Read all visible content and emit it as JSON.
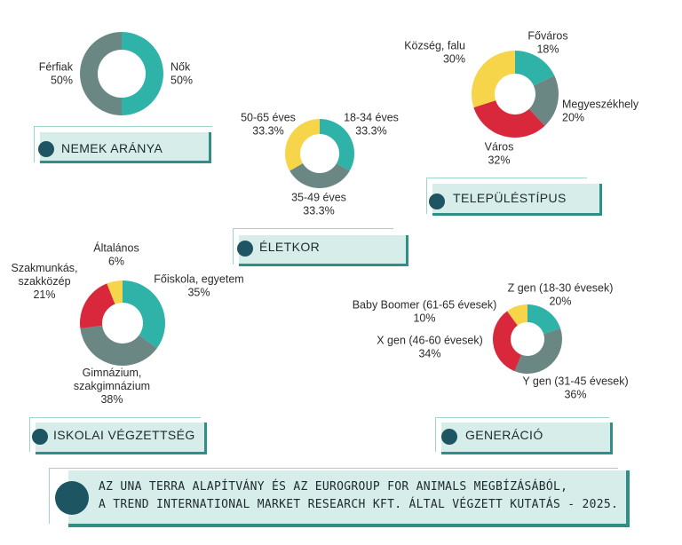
{
  "colors": {
    "teal": "#2fb3a9",
    "gray": "#6b8783",
    "red": "#d9273b",
    "yellow": "#f7d54a"
  },
  "panels": {
    "gender": "NEMEK ARÁNYA",
    "age": "ÉLETKOR",
    "settlement": "TELEPÜLÉSTÍPUS",
    "education": "ISKOLAI VÉGZETTSÉG",
    "generation": "GENERÁCIÓ"
  },
  "footer": {
    "line1": "AZ UNA TERRA ALAPÍTVÁNY ÉS AZ EUROGROUP FOR ANIMALS MEGBÍZÁSÁBÓL,",
    "line2": "A TREND INTERNATIONAL MARKET RESEARCH KFT.  ÁLTAL VÉGZETT KUTATÁS - 2025."
  },
  "chart_data": [
    {
      "id": "gender",
      "type": "pie",
      "title": "NEMEK ARÁNYA",
      "slices": [
        {
          "name": "Nők",
          "value": 50,
          "label": "50%",
          "color": "teal"
        },
        {
          "name": "Férfiak",
          "value": 50,
          "label": "50%",
          "color": "gray"
        }
      ]
    },
    {
      "id": "age",
      "type": "pie",
      "title": "ÉLETKOR",
      "slices": [
        {
          "name": "18-34 éves",
          "value": 33.3,
          "label": "33.3%",
          "color": "teal"
        },
        {
          "name": "35-49 éves",
          "value": 33.3,
          "label": "33.3%",
          "color": "gray"
        },
        {
          "name": "50-65 éves",
          "value": 33.3,
          "label": "33.3%",
          "color": "yellow"
        }
      ]
    },
    {
      "id": "settlement",
      "type": "pie",
      "title": "TELEPÜLÉSTÍPUS",
      "slices": [
        {
          "name": "Főváros",
          "value": 18,
          "label": "18%",
          "color": "teal"
        },
        {
          "name": "Megyeszékhely",
          "value": 20,
          "label": "20%",
          "color": "gray"
        },
        {
          "name": "Város",
          "value": 32,
          "label": "32%",
          "color": "red"
        },
        {
          "name": "Község, falu",
          "value": 30,
          "label": "30%",
          "color": "yellow"
        }
      ]
    },
    {
      "id": "education",
      "type": "pie",
      "title": "ISKOLAI VÉGZETTSÉG",
      "slices": [
        {
          "name": "Főiskola, egyetem",
          "value": 35,
          "label": "35%",
          "color": "teal"
        },
        {
          "name": "Gimnázium, szakgimnázium",
          "value": 38,
          "label": "38%",
          "color": "gray"
        },
        {
          "name": "Szakmunkás, szakközép",
          "value": 21,
          "label": "21%",
          "color": "red"
        },
        {
          "name": "Általános",
          "value": 6,
          "label": "6%",
          "color": "yellow"
        }
      ]
    },
    {
      "id": "generation",
      "type": "pie",
      "title": "GENERÁCIÓ",
      "slices": [
        {
          "name": "Z gen (18-30 évesek)",
          "value": 20,
          "label": "20%",
          "color": "teal"
        },
        {
          "name": "Y gen (31-45 évesek)",
          "value": 36,
          "label": "36%",
          "color": "gray"
        },
        {
          "name": "X gen (46-60 évesek)",
          "value": 34,
          "label": "34%",
          "color": "red"
        },
        {
          "name": "Baby Boomer (61-65 évesek)",
          "value": 10,
          "label": "10%",
          "color": "yellow"
        }
      ]
    }
  ]
}
